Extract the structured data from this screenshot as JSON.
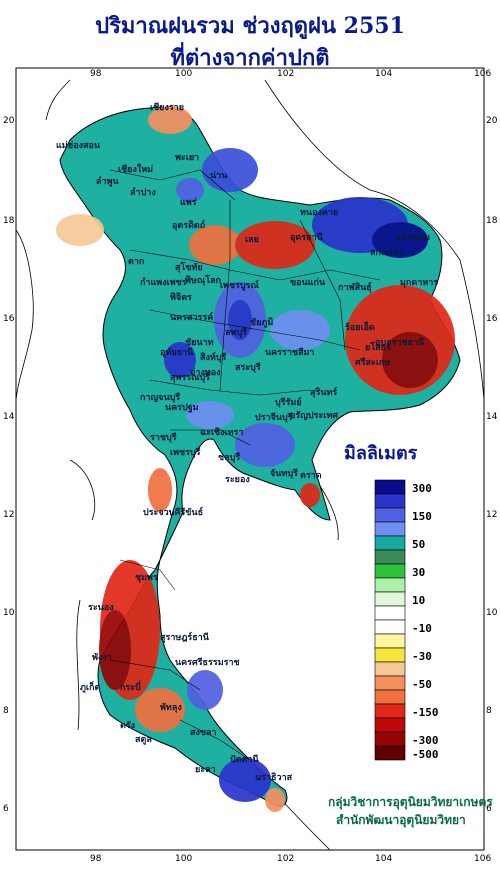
{
  "title_line1": "ปริมาณฝนรวม ช่วงฤดูฝน 2551",
  "title_line2": "ที่ต่างจากค่าปกติ",
  "legend": {
    "unit": "มิลลิเมตร",
    "items": [
      {
        "label": "300",
        "color": "#0a0a8c"
      },
      {
        "label": "",
        "color": "#2b33cc"
      },
      {
        "label": "150",
        "color": "#5060e0"
      },
      {
        "label": "",
        "color": "#6f8ff2"
      },
      {
        "label": "50",
        "color": "#18a8a0"
      },
      {
        "label": "",
        "color": "#3a8a5a"
      },
      {
        "label": "30",
        "color": "#2fc23a"
      },
      {
        "label": "",
        "color": "#a8f0a8"
      },
      {
        "label": "10",
        "color": "#e0f8d8"
      },
      {
        "label": "",
        "color": "#ffffff"
      },
      {
        "label": "-10",
        "color": "#ffffff"
      },
      {
        "label": "",
        "color": "#fff6a0"
      },
      {
        "label": "-30",
        "color": "#f5e63a"
      },
      {
        "label": "",
        "color": "#f6c896"
      },
      {
        "label": "-50",
        "color": "#f49060"
      },
      {
        "label": "",
        "color": "#f07040"
      },
      {
        "label": "-150",
        "color": "#e02818"
      },
      {
        "label": "",
        "color": "#c00808"
      },
      {
        "label": "-300",
        "color": "#950404"
      },
      {
        "label": "-500",
        "color": "#600000"
      }
    ]
  },
  "axes": {
    "top_ticks": [
      "98",
      "100",
      "102",
      "104",
      "106"
    ],
    "bottom_ticks": [
      "98",
      "100",
      "102",
      "104",
      "106"
    ],
    "left_ticks": [
      "20",
      "18",
      "16",
      "14",
      "12",
      "10",
      "8",
      "6"
    ],
    "right_ticks": [
      "20",
      "18",
      "16",
      "14",
      "12",
      "10",
      "8",
      "6"
    ]
  },
  "provinces": [
    "เชียงราย",
    "แม่ฮ่องสอน",
    "เชียงใหม่",
    "ลำพูน",
    "ลำปาง",
    "พะเยา",
    "น่าน",
    "แพร่",
    "อุตรดิตถ์",
    "ตาก",
    "สุโขทัย",
    "พิษณุโลก",
    "เพชรบูรณ์",
    "กำแพงเพชร",
    "พิจิตร",
    "นครสวรรค์",
    "ชัยนาท",
    "อุทัยธานี",
    "ลพบุรี",
    "สิงห์บุรี",
    "สระบุรี",
    "อ่างทอง",
    "สุพรรณบุรี",
    "กาญจนบุรี",
    "นครปฐม",
    "ราชบุรี",
    "เพชรบุรี",
    "ประจวบคีรีขันธ์",
    "ชุมพร",
    "ระนอง",
    "สุราษฎร์ธานี",
    "พังงา",
    "ภูเก็ต",
    "กระบี่",
    "นครศรีธรรมราช",
    "ตรัง",
    "พัทลุง",
    "สตูล",
    "สงขลา",
    "ปัตตานี",
    "ยะลา",
    "นราธิวาส",
    "หนองคาย",
    "อุดรธานี",
    "เลย",
    "สกลนคร",
    "นครพนม",
    "มุกดาหาร",
    "ขอนแก่น",
    "กาฬสินธุ์",
    "ร้อยเอ็ด",
    "ยโสธร",
    "อุบลราชธานี",
    "ศรีสะเกษ",
    "สุรินทร์",
    "บุรีรัมย์",
    "นครราชสีมา",
    "ชัยภูมิ",
    "ปราจีนบุรี",
    "ฉะเชิงเทรา",
    "ชลบุรี",
    "ระยอง",
    "จันทบุรี",
    "ตราด",
    "อรัญประเทศ"
  ],
  "credit_line1": "กลุ่มวิชาการอุตุนิยมวิทยาเกษตร",
  "credit_line2": "สำนักพัฒนาอุตุนิยมวิทยา"
}
